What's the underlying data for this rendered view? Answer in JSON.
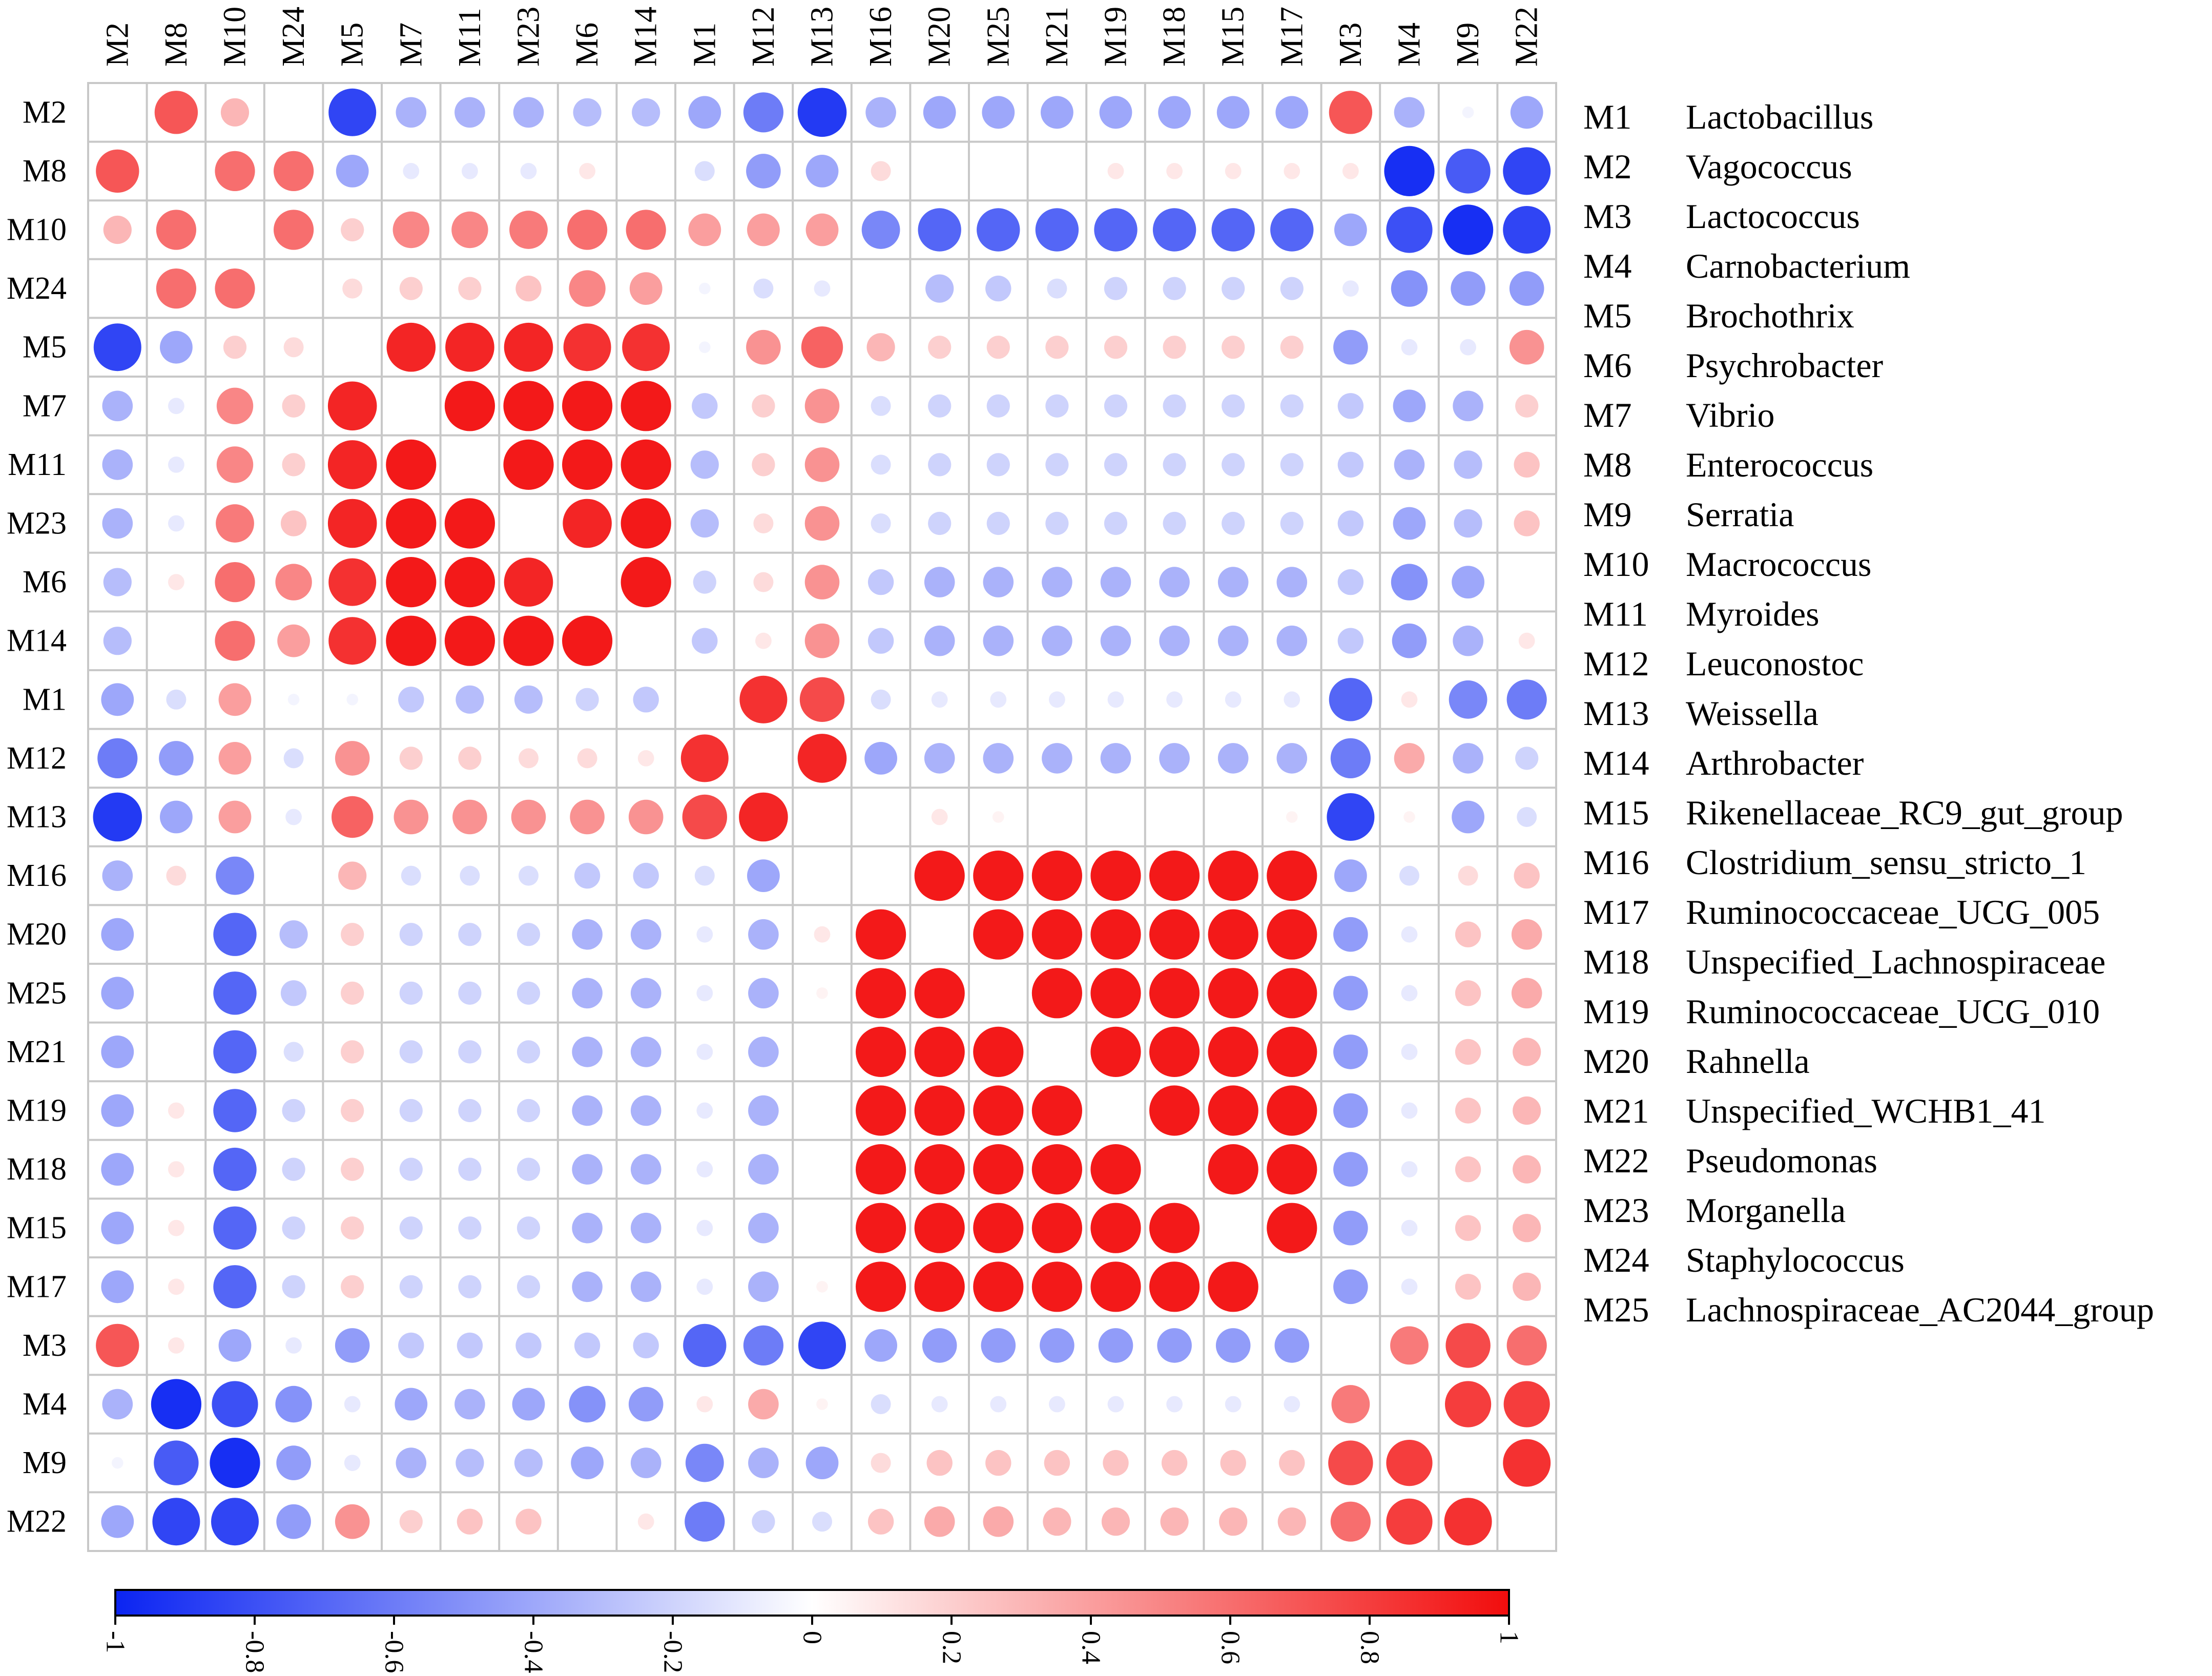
{
  "chart_data": {
    "type": "heatmap",
    "subtype": "correlation-circle-matrix",
    "title": "",
    "xlabel": "",
    "ylabel": "",
    "x_order": [
      "M2",
      "M8",
      "M10",
      "M24",
      "M5",
      "M7",
      "M11",
      "M23",
      "M6",
      "M14",
      "M1",
      "M12",
      "M13",
      "M16",
      "M20",
      "M25",
      "M21",
      "M19",
      "M18",
      "M15",
      "M17",
      "M3",
      "M4",
      "M9",
      "M22"
    ],
    "y_order": [
      "M2",
      "M8",
      "M10",
      "M24",
      "M5",
      "M7",
      "M11",
      "M23",
      "M6",
      "M14",
      "M1",
      "M12",
      "M13",
      "M16",
      "M20",
      "M25",
      "M21",
      "M19",
      "M18",
      "M15",
      "M17",
      "M3",
      "M4",
      "M9",
      "M22"
    ],
    "values": [
      [
        0,
        0.7,
        0.3,
        0,
        -0.85,
        -0.35,
        -0.35,
        -0.35,
        -0.3,
        -0.3,
        -0.4,
        -0.6,
        -0.9,
        -0.35,
        -0.4,
        -0.4,
        -0.4,
        -0.4,
        -0.4,
        -0.4,
        -0.4,
        0.7,
        -0.35,
        -0.05,
        -0.4
      ],
      [
        0.7,
        0,
        0.6,
        0.6,
        -0.4,
        -0.1,
        -0.1,
        -0.1,
        0.1,
        0,
        -0.15,
        -0.45,
        -0.4,
        0.15,
        0,
        0,
        0,
        0.1,
        0.1,
        0.1,
        0.1,
        0.1,
        -0.95,
        -0.75,
        -0.85
      ],
      [
        0.3,
        0.6,
        0,
        0.6,
        0.2,
        0.5,
        0.5,
        0.55,
        0.6,
        0.6,
        0.4,
        0.4,
        0.4,
        -0.55,
        -0.7,
        -0.7,
        -0.7,
        -0.7,
        -0.7,
        -0.7,
        -0.7,
        -0.4,
        -0.8,
        -0.95,
        -0.85
      ],
      [
        0,
        0.6,
        0.6,
        0,
        0.15,
        0.2,
        0.2,
        0.25,
        0.5,
        0.4,
        -0.05,
        -0.15,
        -0.1,
        0,
        -0.3,
        -0.25,
        -0.15,
        -0.2,
        -0.2,
        -0.2,
        -0.2,
        -0.1,
        -0.5,
        -0.45,
        -0.45
      ],
      [
        -0.85,
        -0.4,
        0.2,
        0.15,
        0,
        0.9,
        0.9,
        0.9,
        0.85,
        0.85,
        -0.05,
        0.45,
        0.65,
        0.3,
        0.2,
        0.2,
        0.2,
        0.2,
        0.2,
        0.2,
        0.2,
        -0.45,
        -0.1,
        -0.1,
        0.45
      ],
      [
        -0.35,
        -0.1,
        0.5,
        0.2,
        0.9,
        0,
        0.95,
        0.95,
        0.95,
        0.95,
        -0.25,
        0.2,
        0.45,
        -0.15,
        -0.2,
        -0.2,
        -0.2,
        -0.2,
        -0.2,
        -0.2,
        -0.2,
        -0.25,
        -0.4,
        -0.35,
        0.2
      ],
      [
        -0.35,
        -0.1,
        0.5,
        0.2,
        0.9,
        0.95,
        0,
        0.95,
        0.95,
        0.95,
        -0.3,
        0.2,
        0.45,
        -0.15,
        -0.2,
        -0.2,
        -0.2,
        -0.2,
        -0.2,
        -0.2,
        -0.2,
        -0.25,
        -0.35,
        -0.3,
        0.25
      ],
      [
        -0.35,
        -0.1,
        0.55,
        0.25,
        0.9,
        0.95,
        0.95,
        0,
        0.9,
        0.95,
        -0.3,
        0.15,
        0.45,
        -0.15,
        -0.2,
        -0.2,
        -0.2,
        -0.2,
        -0.2,
        -0.2,
        -0.2,
        -0.25,
        -0.4,
        -0.3,
        0.25
      ],
      [
        -0.3,
        0.1,
        0.6,
        0.5,
        0.85,
        0.95,
        0.95,
        0.9,
        0,
        0.95,
        -0.2,
        0.15,
        0.45,
        -0.25,
        -0.35,
        -0.35,
        -0.35,
        -0.35,
        -0.35,
        -0.35,
        -0.35,
        -0.25,
        -0.5,
        -0.4,
        0
      ],
      [
        -0.3,
        0,
        0.6,
        0.4,
        0.85,
        0.95,
        0.95,
        0.95,
        0.95,
        0,
        -0.25,
        0.1,
        0.45,
        -0.25,
        -0.35,
        -0.35,
        -0.35,
        -0.35,
        -0.35,
        -0.35,
        -0.35,
        -0.25,
        -0.45,
        -0.35,
        0.1
      ],
      [
        -0.4,
        -0.15,
        0.4,
        -0.05,
        -0.05,
        -0.25,
        -0.3,
        -0.3,
        -0.2,
        -0.25,
        0,
        0.85,
        0.75,
        -0.15,
        -0.1,
        -0.1,
        -0.1,
        -0.1,
        -0.1,
        -0.1,
        -0.1,
        -0.7,
        0.1,
        -0.55,
        -0.6
      ],
      [
        -0.6,
        -0.45,
        0.4,
        -0.15,
        0.45,
        0.2,
        0.2,
        0.15,
        0.15,
        0.1,
        0.85,
        0,
        0.9,
        -0.4,
        -0.35,
        -0.35,
        -0.35,
        -0.35,
        -0.35,
        -0.35,
        -0.35,
        -0.6,
        0.35,
        -0.35,
        -0.2
      ],
      [
        -0.9,
        -0.4,
        0.4,
        -0.1,
        0.65,
        0.45,
        0.45,
        0.45,
        0.45,
        0.45,
        0.75,
        0.9,
        0,
        0,
        0.1,
        0.05,
        0,
        0,
        0,
        0,
        0.05,
        -0.85,
        0.05,
        -0.4,
        -0.15
      ],
      [
        -0.35,
        0.15,
        -0.55,
        0,
        0.3,
        -0.15,
        -0.15,
        -0.15,
        -0.25,
        -0.25,
        -0.15,
        -0.4,
        0,
        0,
        0.95,
        0.95,
        0.95,
        0.95,
        0.95,
        0.95,
        0.95,
        -0.4,
        -0.15,
        0.15,
        0.25
      ],
      [
        -0.4,
        0,
        -0.7,
        -0.3,
        0.2,
        -0.2,
        -0.2,
        -0.2,
        -0.35,
        -0.35,
        -0.1,
        -0.35,
        0.1,
        0.95,
        0,
        0.95,
        0.95,
        0.95,
        0.95,
        0.95,
        0.95,
        -0.45,
        -0.1,
        0.25,
        0.35
      ],
      [
        -0.4,
        0,
        -0.7,
        -0.25,
        0.2,
        -0.2,
        -0.2,
        -0.2,
        -0.35,
        -0.35,
        -0.1,
        -0.35,
        0.05,
        0.95,
        0.95,
        0,
        0.95,
        0.95,
        0.95,
        0.95,
        0.95,
        -0.45,
        -0.1,
        0.25,
        0.35
      ],
      [
        -0.4,
        0,
        -0.7,
        -0.15,
        0.2,
        -0.2,
        -0.2,
        -0.2,
        -0.35,
        -0.35,
        -0.1,
        -0.35,
        0,
        0.95,
        0.95,
        0.95,
        0,
        0.95,
        0.95,
        0.95,
        0.95,
        -0.45,
        -0.1,
        0.25,
        0.3
      ],
      [
        -0.4,
        0.1,
        -0.7,
        -0.2,
        0.2,
        -0.2,
        -0.2,
        -0.2,
        -0.35,
        -0.35,
        -0.1,
        -0.35,
        0,
        0.95,
        0.95,
        0.95,
        0.95,
        0,
        0.95,
        0.95,
        0.95,
        -0.45,
        -0.1,
        0.25,
        0.3
      ],
      [
        -0.4,
        0.1,
        -0.7,
        -0.2,
        0.2,
        -0.2,
        -0.2,
        -0.2,
        -0.35,
        -0.35,
        -0.1,
        -0.35,
        0,
        0.95,
        0.95,
        0.95,
        0.95,
        0.95,
        0,
        0.95,
        0.95,
        -0.45,
        -0.1,
        0.25,
        0.3
      ],
      [
        -0.4,
        0.1,
        -0.7,
        -0.2,
        0.2,
        -0.2,
        -0.2,
        -0.2,
        -0.35,
        -0.35,
        -0.1,
        -0.35,
        0,
        0.95,
        0.95,
        0.95,
        0.95,
        0.95,
        0.95,
        0,
        0.95,
        -0.45,
        -0.1,
        0.25,
        0.3
      ],
      [
        -0.4,
        0.1,
        -0.7,
        -0.2,
        0.2,
        -0.2,
        -0.2,
        -0.2,
        -0.35,
        -0.35,
        -0.1,
        -0.35,
        0.05,
        0.95,
        0.95,
        0.95,
        0.95,
        0.95,
        0.95,
        0.95,
        0,
        -0.45,
        -0.1,
        0.25,
        0.3
      ],
      [
        0.7,
        0.1,
        -0.4,
        -0.1,
        -0.45,
        -0.25,
        -0.25,
        -0.25,
        -0.25,
        -0.25,
        -0.7,
        -0.6,
        -0.85,
        -0.4,
        -0.45,
        -0.45,
        -0.45,
        -0.45,
        -0.45,
        -0.45,
        -0.45,
        0,
        0.55,
        0.75,
        0.6
      ],
      [
        -0.35,
        -0.95,
        -0.8,
        -0.5,
        -0.1,
        -0.4,
        -0.35,
        -0.4,
        -0.5,
        -0.45,
        0.1,
        0.35,
        0.05,
        -0.15,
        -0.1,
        -0.1,
        -0.1,
        -0.1,
        -0.1,
        -0.1,
        -0.1,
        0.55,
        0,
        0.8,
        0.8
      ],
      [
        -0.05,
        -0.75,
        -0.95,
        -0.45,
        -0.1,
        -0.35,
        -0.3,
        -0.3,
        -0.4,
        -0.35,
        -0.55,
        -0.35,
        -0.4,
        0.15,
        0.25,
        0.25,
        0.25,
        0.25,
        0.25,
        0.25,
        0.25,
        0.75,
        0.8,
        0,
        0.85
      ],
      [
        -0.4,
        -0.85,
        -0.85,
        -0.45,
        0.45,
        0.2,
        0.25,
        0.25,
        0,
        0.1,
        -0.6,
        -0.2,
        -0.15,
        0.25,
        0.35,
        0.35,
        0.3,
        0.3,
        0.3,
        0.3,
        0.3,
        0.6,
        0.8,
        0.85,
        0
      ]
    ],
    "colorbar": {
      "range": [
        -1,
        1
      ],
      "ticks": [
        "-1",
        "-0.8",
        "-0.6",
        "-0.4",
        "-0.2",
        "0",
        "0.2",
        "0.4",
        "0.6",
        "0.8",
        "1"
      ],
      "colors": {
        "negative": "#0b24f2",
        "zero": "#ffffff",
        "positive": "#f20d0d"
      }
    },
    "legend": {
      "placement": "right",
      "entries": [
        {
          "code": "M1",
          "name": "Lactobacillus"
        },
        {
          "code": "M2",
          "name": "Vagococcus"
        },
        {
          "code": "M3",
          "name": "Lactococcus"
        },
        {
          "code": "M4",
          "name": "Carnobacterium"
        },
        {
          "code": "M5",
          "name": "Brochothrix"
        },
        {
          "code": "M6",
          "name": "Psychrobacter"
        },
        {
          "code": "M7",
          "name": "Vibrio"
        },
        {
          "code": "M8",
          "name": "Enterococcus"
        },
        {
          "code": "M9",
          "name": "Serratia"
        },
        {
          "code": "M10",
          "name": "Macrococcus"
        },
        {
          "code": "M11",
          "name": "Myroides"
        },
        {
          "code": "M12",
          "name": "Leuconostoc"
        },
        {
          "code": "M13",
          "name": "Weissella"
        },
        {
          "code": "M14",
          "name": "Arthrobacter"
        },
        {
          "code": "M15",
          "name": "Rikenellaceae_RC9_gut_group"
        },
        {
          "code": "M16",
          "name": "Clostridium_sensu_stricto_1"
        },
        {
          "code": "M17",
          "name": "Ruminococcaceae_UCG_005"
        },
        {
          "code": "M18",
          "name": "Unspecified_Lachnospiraceae"
        },
        {
          "code": "M19",
          "name": "Ruminococcaceae_UCG_010"
        },
        {
          "code": "M20",
          "name": "Rahnella"
        },
        {
          "code": "M21",
          "name": "Unspecified_WCHB1_41"
        },
        {
          "code": "M22",
          "name": "Pseudomonas"
        },
        {
          "code": "M23",
          "name": "Morganella"
        },
        {
          "code": "M24",
          "name": "Staphylococcus"
        },
        {
          "code": "M25",
          "name": "Lachnospiraceae_AC2044_group"
        }
      ]
    }
  }
}
